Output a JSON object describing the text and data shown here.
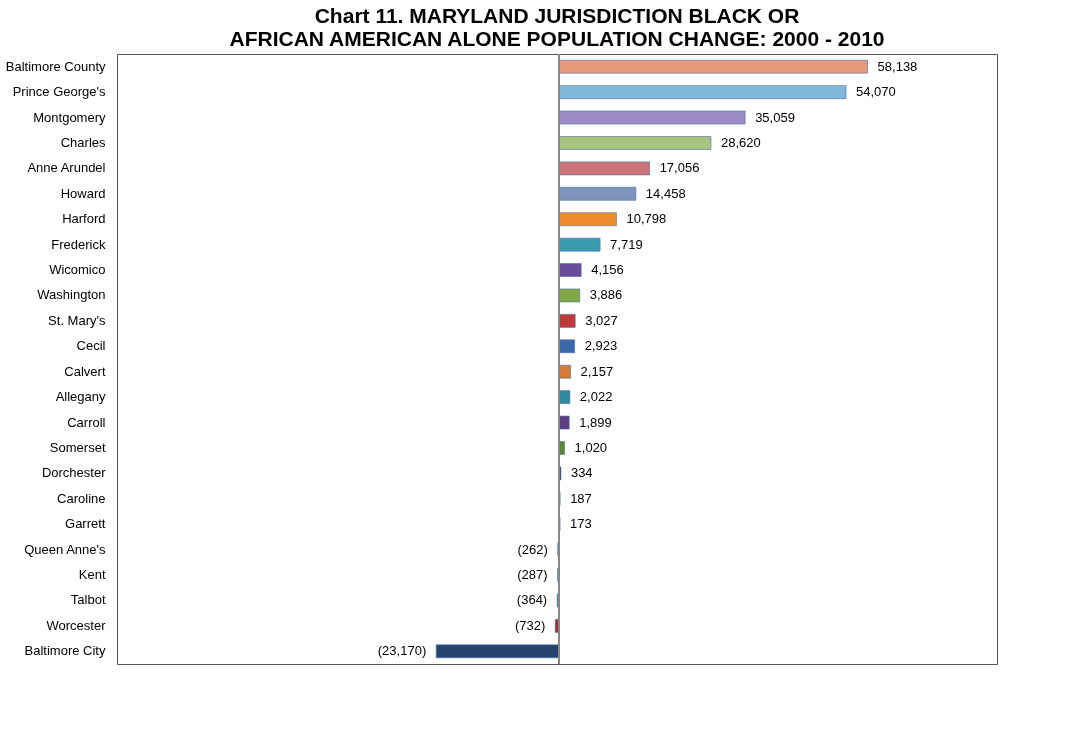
{
  "chart_data": {
    "type": "bar",
    "orientation": "horizontal",
    "title": "Chart 11.  MARYLAND JURISDICTION BLACK OR AFRICAN AMERICAN ALONE POPULATION CHANGE:  2000 - 2010",
    "categories": [
      "Baltimore County",
      "Prince George's",
      "Montgomery",
      "Charles",
      "Anne Arundel",
      "Howard",
      "Harford",
      "Frederick",
      "Wicomico",
      "Washington",
      "St. Mary's",
      "Cecil",
      "Calvert",
      "Allegany",
      "Carroll",
      "Somerset",
      "Dorchester",
      "Caroline",
      "Garrett",
      "Queen Anne's",
      "Kent",
      "Talbot",
      "Worcester",
      "Baltimore City"
    ],
    "values": [
      58138,
      54070,
      35059,
      28620,
      17056,
      14458,
      10798,
      7719,
      4156,
      3886,
      3027,
      2923,
      2157,
      2022,
      1899,
      1020,
      334,
      187,
      173,
      -262,
      -287,
      -364,
      -732,
      -23170
    ],
    "value_labels": [
      "58,138",
      "54,070",
      "35,059",
      "28,620",
      "17,056",
      "14,458",
      "10,798",
      "7,719",
      "4,156",
      "3,886",
      "3,027",
      "2,923",
      "2,157",
      "2,022",
      "1,899",
      "1,020",
      "334",
      "187",
      "173",
      "(262)",
      "(287)",
      "(364)",
      "(732)",
      "(23,170)"
    ],
    "colors": [
      "#e8997a",
      "#7fb9d8",
      "#9a8cc2",
      "#a9c47f",
      "#c87479",
      "#7f94bd",
      "#ef8c2f",
      "#3a9ab0",
      "#6b4c9a",
      "#82a843",
      "#c0393b",
      "#3c6aa8",
      "#d87a33",
      "#2f8aa0",
      "#5a3f85",
      "#5d8a2e",
      "#3b2e6b",
      "#5b8fd0",
      "#5b8fd0",
      "#4f7fbf",
      "#4f7fbf",
      "#4d7aa0",
      "#a03030",
      "#24436e"
    ],
    "grid": false
  }
}
